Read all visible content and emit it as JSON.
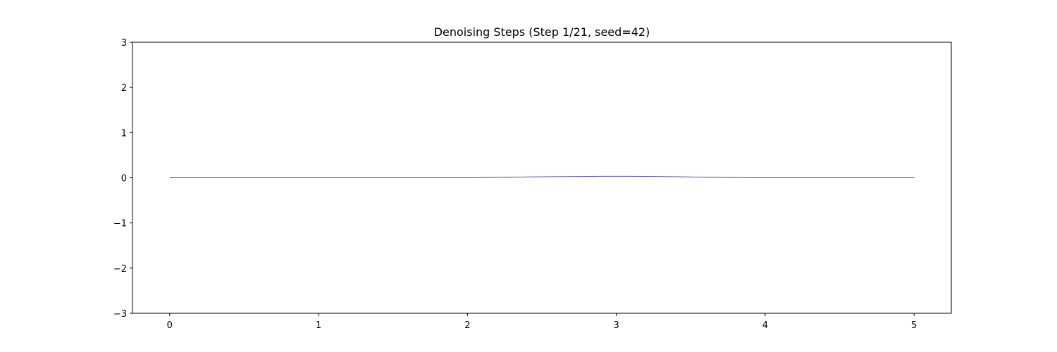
{
  "chart_data": {
    "type": "line",
    "title": "Denoising Steps (Step 1/21, seed=42)",
    "xlabel": "",
    "ylabel": "",
    "xlim": [
      -0.25,
      5.25
    ],
    "ylim": [
      -3,
      3
    ],
    "x_ticks": [
      0,
      1,
      2,
      3,
      4,
      5
    ],
    "x_tick_labels": [
      "0",
      "1",
      "2",
      "3",
      "4",
      "5"
    ],
    "y_ticks": [
      -3,
      -2,
      -1,
      0,
      1,
      2,
      3
    ],
    "y_tick_labels": [
      "−3",
      "−2",
      "−1",
      "0",
      "1",
      "2",
      "3"
    ],
    "grid": false,
    "legend": false,
    "series": [
      {
        "color": "#4b4b9e",
        "x": [
          0,
          0.25,
          0.5,
          0.75,
          1,
          1.25,
          1.5,
          1.75,
          2,
          2.1,
          2.25,
          2.4,
          2.5,
          2.6,
          2.75,
          2.9,
          3,
          3.1,
          3.25,
          3.4,
          3.5,
          3.6,
          3.75,
          3.9,
          4,
          4.25,
          4.5,
          4.75,
          5
        ],
        "y": [
          0,
          0,
          0,
          0,
          0,
          0,
          0,
          0,
          0,
          0.003,
          0.01,
          0.018,
          0.022,
          0.026,
          0.03,
          0.033,
          0.034,
          0.033,
          0.03,
          0.024,
          0.018,
          0.012,
          0.006,
          0.002,
          0,
          0,
          0,
          0,
          0
        ]
      }
    ]
  }
}
